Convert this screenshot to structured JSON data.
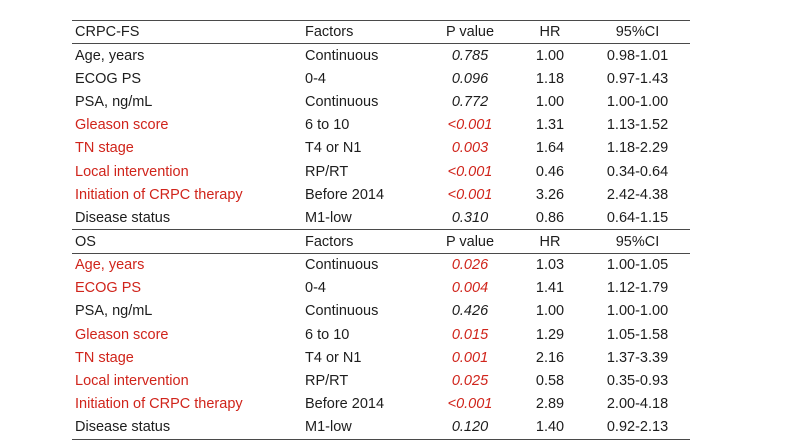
{
  "chart_data": {
    "type": "table",
    "sections": [
      {
        "title": "CRPC-FS",
        "columns": [
          "Factors",
          "P value",
          "HR",
          "95%CI"
        ],
        "rows": [
          {
            "factor": "Age, years",
            "level": "Continuous",
            "p_value": "0.785",
            "hr": "1.00",
            "ci_95": "0.98-1.01",
            "significant": false
          },
          {
            "factor": "ECOG PS",
            "level": "0-4",
            "p_value": "0.096",
            "hr": "1.18",
            "ci_95": "0.97-1.43",
            "significant": false
          },
          {
            "factor": "PSA, ng/mL",
            "level": "Continuous",
            "p_value": "0.772",
            "hr": "1.00",
            "ci_95": "1.00-1.00",
            "significant": false
          },
          {
            "factor": "Gleason score",
            "level": "6 to 10",
            "p_value": "<0.001",
            "hr": "1.31",
            "ci_95": "1.13-1.52",
            "significant": true
          },
          {
            "factor": "TN stage",
            "level": "T4 or N1",
            "p_value": "0.003",
            "hr": "1.64",
            "ci_95": "1.18-2.29",
            "significant": true
          },
          {
            "factor": "Local intervention",
            "level": "RP/RT",
            "p_value": "<0.001",
            "hr": "0.46",
            "ci_95": "0.34-0.64",
            "significant": true
          },
          {
            "factor": "Initiation of CRPC therapy",
            "level": "Before 2014",
            "p_value": "<0.001",
            "hr": "3.26",
            "ci_95": "2.42-4.38",
            "significant": true
          },
          {
            "factor": "Disease status",
            "level": "M1-low",
            "p_value": "0.310",
            "hr": "0.86",
            "ci_95": "0.64-1.15",
            "significant": false
          }
        ]
      },
      {
        "title": "OS",
        "columns": [
          "Factors",
          "P value",
          "HR",
          "95%CI"
        ],
        "rows": [
          {
            "factor": "Age, years",
            "level": "Continuous",
            "p_value": "0.026",
            "hr": "1.03",
            "ci_95": "1.00-1.05",
            "significant": true
          },
          {
            "factor": "ECOG PS",
            "level": "0-4",
            "p_value": "0.004",
            "hr": "1.41",
            "ci_95": "1.12-1.79",
            "significant": true
          },
          {
            "factor": "PSA, ng/mL",
            "level": "Continuous",
            "p_value": "0.426",
            "hr": "1.00",
            "ci_95": "1.00-1.00",
            "significant": false
          },
          {
            "factor": "Gleason score",
            "level": "6 to 10",
            "p_value": "0.015",
            "hr": "1.29",
            "ci_95": "1.05-1.58",
            "significant": true
          },
          {
            "factor": "TN stage",
            "level": "T4 or N1",
            "p_value": "0.001",
            "hr": "2.16",
            "ci_95": "1.37-3.39",
            "significant": true
          },
          {
            "factor": "Local intervention",
            "level": "RP/RT",
            "p_value": "0.025",
            "hr": "0.58",
            "ci_95": "0.35-0.93",
            "significant": true
          },
          {
            "factor": "Initiation of CRPC therapy",
            "level": "Before 2014",
            "p_value": "<0.001",
            "hr": "2.89",
            "ci_95": "2.00-4.18",
            "significant": true
          },
          {
            "factor": "Disease status",
            "level": "M1-low",
            "p_value": "0.120",
            "hr": "1.40",
            "ci_95": "0.92-2.13",
            "significant": false
          }
        ]
      }
    ]
  },
  "colors": {
    "significant_red": "#d0241b",
    "text": "#1d1d1d",
    "rule_line": "#4a4a4a",
    "background": "#ffffff"
  }
}
